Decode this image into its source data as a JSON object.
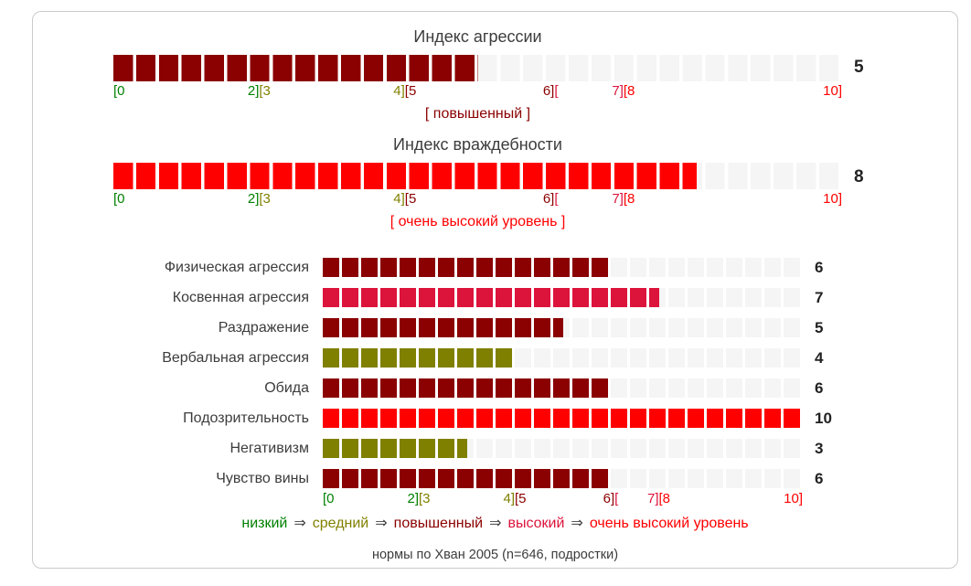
{
  "palette": {
    "green": "#008000",
    "olive": "#808000",
    "darkred": "#8b0000",
    "crimson": "#dc143c",
    "red": "#ff0000",
    "track": "#f5f5f5",
    "text": "#3c3c3c",
    "value_text": "#222222",
    "arrow": "#444444",
    "border": "#cacaca"
  },
  "indices": [
    {
      "title": "Индекс агрессии",
      "value": 5,
      "color": "darkred",
      "level_label": "[ повышенный ]",
      "level_color": "darkred"
    },
    {
      "title": "Индекс враждебности",
      "value": 8,
      "color": "red",
      "level_label": "[ очень высокий уровень ]",
      "level_color": "red"
    }
  ],
  "scale": {
    "labels": [
      {
        "v": 0,
        "align": "left",
        "parts": [
          {
            "t": "[0",
            "c": "green"
          }
        ]
      },
      {
        "v": 2,
        "parts": [
          {
            "t": "2]",
            "c": "green"
          },
          {
            "t": "[3",
            "c": "olive"
          }
        ]
      },
      {
        "v": 4,
        "parts": [
          {
            "t": "4]",
            "c": "olive"
          },
          {
            "t": "[5",
            "c": "darkred"
          }
        ]
      },
      {
        "v": 6,
        "parts": [
          {
            "t": "6]",
            "c": "darkred"
          },
          {
            "t": "[",
            "c": "crimson"
          }
        ]
      },
      {
        "v": 7,
        "parts": [
          {
            "t": "7]",
            "c": "crimson"
          },
          {
            "t": "[8",
            "c": "red"
          }
        ]
      },
      {
        "v": 10,
        "align": "right",
        "parts": [
          {
            "t": "10]",
            "c": "red"
          }
        ]
      }
    ]
  },
  "rows": [
    {
      "label": "Физическая агрессия",
      "value": 6,
      "color": "darkred"
    },
    {
      "label": "Косвенная агрессия",
      "value": 7,
      "color": "crimson"
    },
    {
      "label": "Раздражение",
      "value": 5,
      "color": "darkred"
    },
    {
      "label": "Вербальная агрессия",
      "value": 4,
      "color": "olive"
    },
    {
      "label": "Обида",
      "value": 6,
      "color": "darkred"
    },
    {
      "label": "Подозрительность",
      "value": 10,
      "color": "red"
    },
    {
      "label": "Негативизм",
      "value": 3,
      "color": "olive"
    },
    {
      "label": "Чувство вины",
      "value": 6,
      "color": "darkred"
    }
  ],
  "legend": {
    "arrow": "⇒",
    "items": [
      {
        "t": "низкий",
        "c": "green"
      },
      {
        "t": "средний",
        "c": "olive"
      },
      {
        "t": "повышенный",
        "c": "darkred"
      },
      {
        "t": "высокий",
        "c": "crimson"
      },
      {
        "t": "очень высокий уровень",
        "c": "red"
      }
    ]
  },
  "footer": "нормы по Хван 2005 (n=646, подростки)",
  "chart_data": [
    {
      "type": "bar",
      "orientation": "horizontal",
      "title": "Индекс агрессии",
      "categories": [
        "Индекс агрессии"
      ],
      "values": [
        5
      ],
      "xlim": [
        0,
        10
      ],
      "tick_labels": [
        "[0",
        "2][3",
        "4][5",
        "6][",
        "7][8",
        "10]"
      ],
      "annotation": "[ повышенный ]"
    },
    {
      "type": "bar",
      "orientation": "horizontal",
      "title": "Индекс враждебности",
      "categories": [
        "Индекс враждебности"
      ],
      "values": [
        8
      ],
      "xlim": [
        0,
        10
      ],
      "tick_labels": [
        "[0",
        "2][3",
        "4][5",
        "6][",
        "7][8",
        "10]"
      ],
      "annotation": "[ очень высокий уровень ]"
    },
    {
      "type": "bar",
      "orientation": "horizontal",
      "title": "Субшкалы агрессии",
      "categories": [
        "Физическая агрессия",
        "Косвенная агрессия",
        "Раздражение",
        "Вербальная агрессия",
        "Обида",
        "Подозрительность",
        "Негативизм",
        "Чувство вины"
      ],
      "values": [
        6,
        7,
        5,
        4,
        6,
        10,
        3,
        6
      ],
      "xlim": [
        0,
        10
      ],
      "tick_labels": [
        "[0",
        "2][3",
        "4][5",
        "6][",
        "7][8",
        "10]"
      ],
      "legend_entries": [
        "низкий",
        "средний",
        "повышенный",
        "высокий",
        "очень высокий уровень"
      ],
      "legend_position": "bottom"
    }
  ]
}
